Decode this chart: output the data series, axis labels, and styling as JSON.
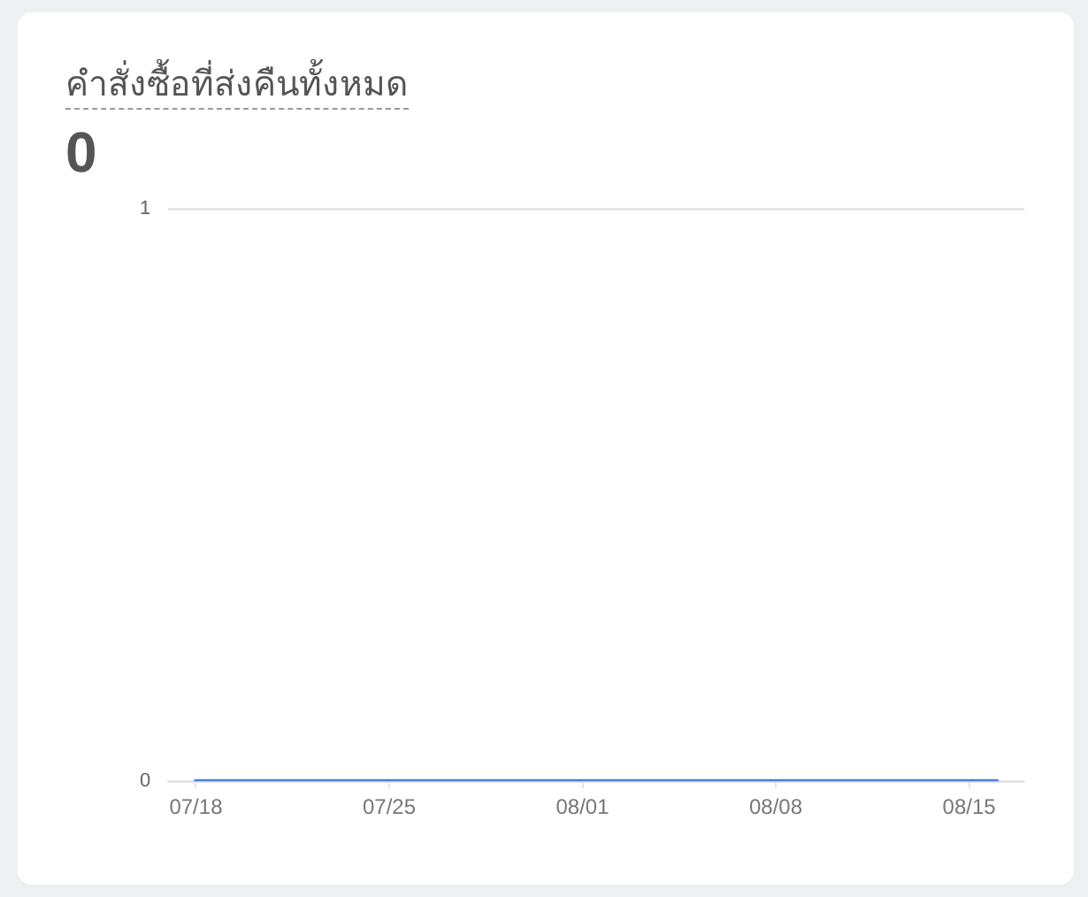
{
  "chart_data": {
    "type": "line",
    "title": "คำสั่งซื้อที่ส่งคืนทั้งหมด",
    "subtitle": "0",
    "x": [
      "--07-18",
      "--07-19",
      "--07-20",
      "--07-21",
      "--07-22",
      "--07-23",
      "--07-24",
      "--07-25",
      "--07-26",
      "--07-27",
      "--07-28",
      "--07-29",
      "--07-30",
      "--07-31",
      "--08-01",
      "--08-02",
      "--08-03",
      "--08-04",
      "--08-05",
      "--08-06",
      "--08-07",
      "--08-08",
      "--08-09",
      "--08-10",
      "--08-11",
      "--08-12",
      "--08-13",
      "--08-14",
      "--08-15",
      "--08-16"
    ],
    "values": [
      0,
      0,
      0,
      0,
      0,
      0,
      0,
      0,
      0,
      0,
      0,
      0,
      0,
      0,
      0,
      0,
      0,
      0,
      0,
      0,
      0,
      0,
      0,
      0,
      0,
      0,
      0,
      0,
      0,
      0
    ],
    "color": "#4a7fe0",
    "marker": "none",
    "line_style": "solid",
    "xlim": [
      "--07-17",
      "--08-17"
    ],
    "xticks": [
      {
        "value": "--07-18",
        "label": "07/18"
      },
      {
        "value": "--07-25",
        "label": "07/25"
      },
      {
        "value": "--08-01",
        "label": "08/01"
      },
      {
        "value": "--08-08",
        "label": "08/08"
      },
      {
        "value": "--08-15",
        "label": "08/15"
      }
    ],
    "ylim": [
      0,
      1
    ],
    "yticks": [
      0,
      1
    ],
    "grid": "y"
  }
}
